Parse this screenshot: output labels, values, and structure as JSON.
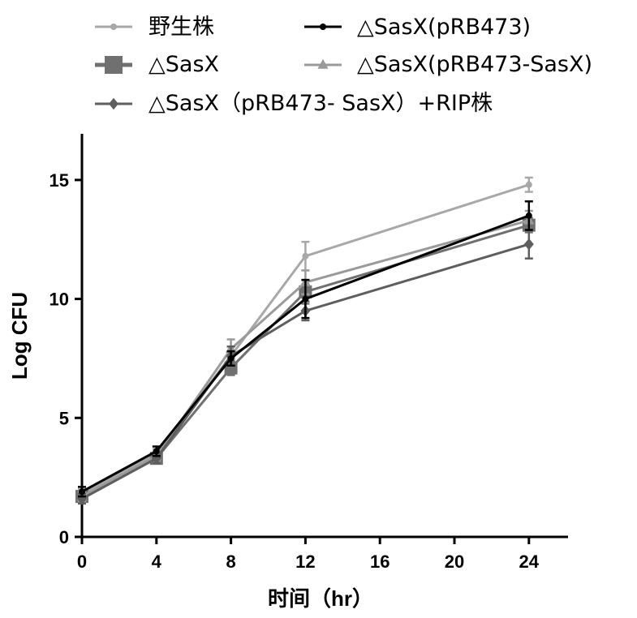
{
  "chart_data": {
    "type": "line",
    "xlabel": "时间（hr）",
    "ylabel": "Log CFU",
    "xlim": [
      0,
      26
    ],
    "ylim": [
      0,
      17
    ],
    "xticks": [
      0,
      4,
      8,
      12,
      16,
      20,
      24
    ],
    "yticks": [
      0,
      5,
      10,
      15
    ],
    "x": [
      0,
      4,
      8,
      12,
      24
    ],
    "series": [
      {
        "name": "野生株",
        "marker": "circle",
        "color": "#a8a8a8",
        "values": [
          1.8,
          3.5,
          7.6,
          11.8,
          14.8
        ],
        "errors": [
          0.2,
          0.2,
          0.4,
          0.6,
          0.3
        ]
      },
      {
        "name": "△SasX(pRB473)",
        "marker": "circle",
        "color": "#000000",
        "values": [
          1.9,
          3.6,
          7.5,
          10.0,
          13.5
        ],
        "errors": [
          0.2,
          0.2,
          0.3,
          0.8,
          0.6
        ]
      },
      {
        "name": "△SasX",
        "marker": "square",
        "color": "#707070",
        "values": [
          1.7,
          3.3,
          7.1,
          10.3,
          13.1
        ],
        "errors": [
          0.2,
          0.2,
          0.3,
          0.5,
          0.3
        ]
      },
      {
        "name": "△SasX(pRB473-SasX)",
        "marker": "triangle",
        "color": "#9a9a9a",
        "values": [
          1.7,
          3.4,
          7.9,
          10.7,
          13.3
        ],
        "errors": [
          0.2,
          0.2,
          0.4,
          0.5,
          0.4
        ]
      },
      {
        "name": "△SasX（pRB473- SasX）+RIP株",
        "marker": "diamond",
        "color": "#5e5e5e",
        "values": [
          1.6,
          3.3,
          7.6,
          9.5,
          12.3
        ],
        "errors": [
          0.2,
          0.2,
          0.4,
          0.4,
          0.6
        ]
      }
    ],
    "legend_position": "top"
  }
}
